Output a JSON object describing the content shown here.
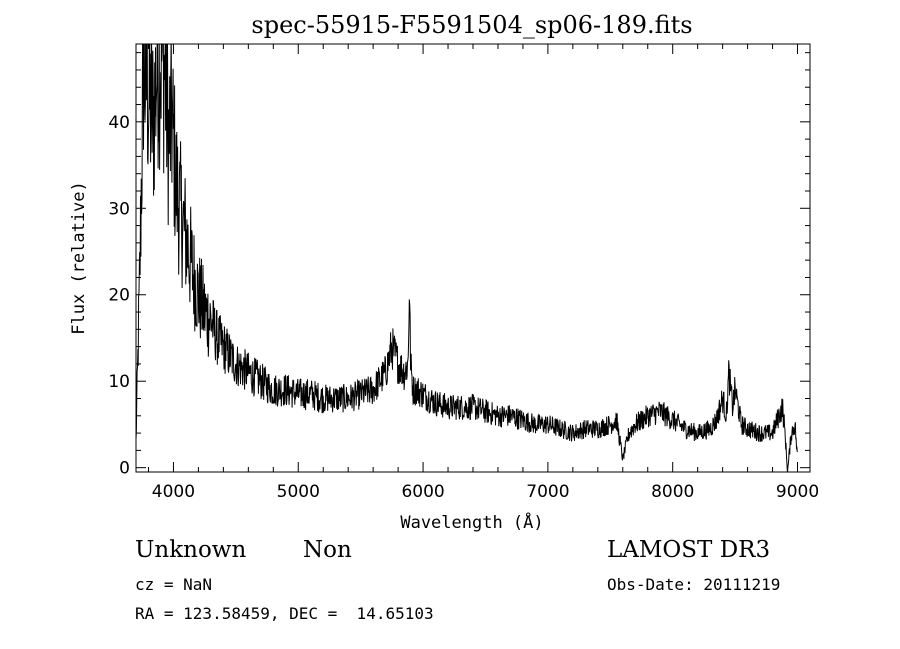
{
  "chart_data": {
    "type": "line",
    "title": "spec-55915-F5591504_sp06-189.fits",
    "xlabel": "Wavelength (Å)",
    "ylabel": "Flux (relative)",
    "xlim": [
      3700,
      9100
    ],
    "ylim": [
      -0.5,
      49
    ],
    "xticks": [
      4000,
      5000,
      6000,
      7000,
      8000,
      9000
    ],
    "yticks": [
      0,
      10,
      20,
      30,
      40
    ],
    "grid": false,
    "series": [
      {
        "name": "flux",
        "x": [
          3700,
          3730,
          3760,
          3800,
          3840,
          3870,
          3900,
          3930,
          3960,
          3990,
          4020,
          4050,
          4080,
          4110,
          4150,
          4200,
          4250,
          4300,
          4350,
          4400,
          4450,
          4500,
          4550,
          4600,
          4650,
          4700,
          4750,
          4800,
          4900,
          5000,
          5100,
          5200,
          5300,
          5400,
          5500,
          5600,
          5700,
          5750,
          5800,
          5850,
          5880,
          5890,
          5900,
          5920,
          5950,
          6000,
          6100,
          6200,
          6300,
          6400,
          6500,
          6600,
          6700,
          6800,
          6900,
          7000,
          7100,
          7200,
          7300,
          7400,
          7500,
          7550,
          7600,
          7650,
          7700,
          7800,
          7900,
          8000,
          8100,
          8200,
          8300,
          8350,
          8400,
          8430,
          8450,
          8480,
          8500,
          8550,
          8600,
          8700,
          8800,
          8850,
          8880,
          8900,
          8920,
          8950,
          8980,
          9000
        ],
        "y": [
          3,
          22,
          47,
          43,
          40,
          47,
          48,
          46,
          38,
          40,
          33,
          30,
          28,
          26,
          23,
          20,
          18,
          17,
          15,
          14,
          13,
          12,
          11.5,
          11,
          10.5,
          10,
          9.5,
          9,
          9,
          8.5,
          8.5,
          8,
          8,
          8,
          8.5,
          9,
          11,
          14,
          12,
          11,
          12,
          21,
          12,
          9,
          9,
          8.5,
          7.5,
          7,
          7,
          7,
          6.5,
          6,
          6,
          5.5,
          5,
          5,
          4.5,
          4,
          4.5,
          4.5,
          5,
          5.5,
          1,
          4,
          5,
          6,
          6.5,
          5.5,
          4.5,
          4,
          4.5,
          5.5,
          8,
          6,
          11,
          7,
          9,
          5,
          4.5,
          4,
          4,
          6,
          7,
          4,
          -0.5,
          4,
          5,
          1
        ]
      }
    ]
  },
  "info": {
    "class_label": "Unknown",
    "subclass_label": "Non",
    "survey": "LAMOST DR3",
    "cz": "cz = NaN",
    "obs_date": "Obs-Date: 20111219",
    "coords": "RA = 123.58459, DEC =  14.65103"
  }
}
